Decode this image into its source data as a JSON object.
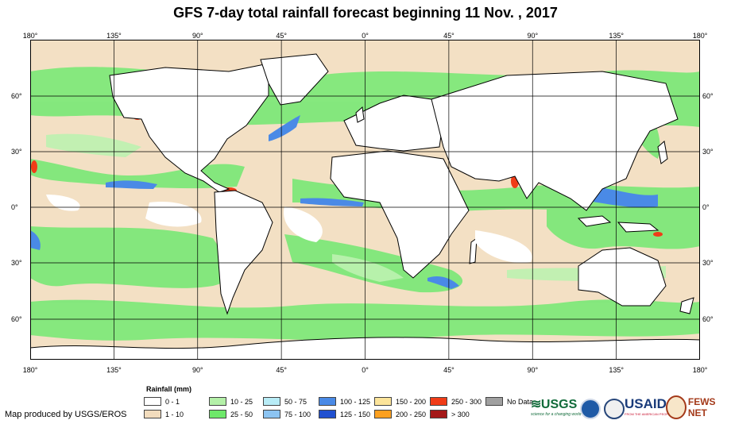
{
  "title": "GFS 7-day total rainfall forecast beginning 11 Nov. , 2017",
  "lon_ticks": [
    "180°",
    "135°",
    "90°",
    "45°",
    "0°",
    "45°",
    "90°",
    "135°",
    "180°"
  ],
  "lat_ticks": [
    "60°",
    "30°",
    "0°",
    "30°",
    "60°"
  ],
  "map": {
    "ocean_base_color": "#f3e0c4",
    "land_color": "#ffffff",
    "outline_color": "#000000"
  },
  "legend": {
    "title": "Rainfall (mm)",
    "items": [
      {
        "label": "0 - 1",
        "color": "#ffffff"
      },
      {
        "label": "1 - 10",
        "color": "#f2dcbd"
      },
      {
        "label": "10 - 25",
        "color": "#b4f0a8"
      },
      {
        "label": "25 - 50",
        "color": "#6ee86a"
      },
      {
        "label": "50 - 75",
        "color": "#b8ecf6"
      },
      {
        "label": "75 - 100",
        "color": "#8cc4f2"
      },
      {
        "label": "100 - 125",
        "color": "#4a8ae6"
      },
      {
        "label": "125 - 150",
        "color": "#2050d0"
      },
      {
        "label": "150 - 200",
        "color": "#fce49a"
      },
      {
        "label": "200 - 250",
        "color": "#fca020"
      },
      {
        "label": "250 - 300",
        "color": "#f03c18"
      },
      {
        "label": "> 300",
        "color": "#a41818"
      },
      {
        "label": "No Data",
        "color": "#a0a0a0"
      }
    ]
  },
  "credit": "Map produced by USGS/EROS",
  "logos": {
    "usgs": "USGS",
    "usgs_tagline": "science for a changing world",
    "usaid": "USAID",
    "usaid_tagline": "FROM THE AMERICAN PEOPLE",
    "fews": "FEWS NET"
  }
}
